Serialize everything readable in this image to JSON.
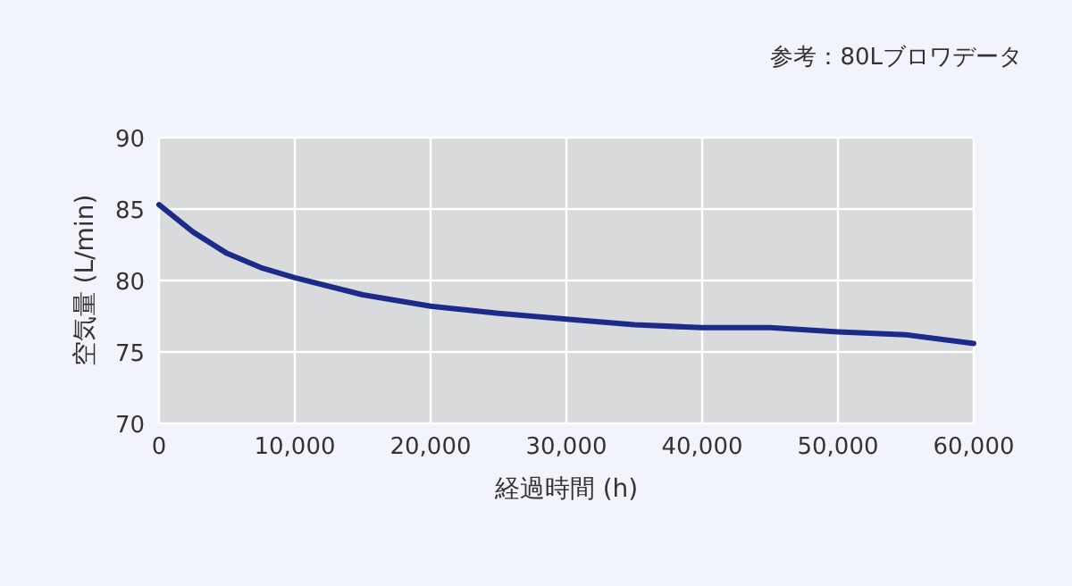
{
  "chart_data": {
    "type": "line",
    "xlabel": "経過時間 (h)",
    "ylabel": "空気量 (L/min)",
    "annotations": [
      "参考：80Lブロワデータ"
    ],
    "x": [
      0,
      2500,
      5000,
      7500,
      10000,
      15000,
      20000,
      25000,
      30000,
      35000,
      40000,
      45000,
      50000,
      55000,
      60000
    ],
    "series": [
      {
        "color": "#1c2a8a",
        "values": [
          85.3,
          83.4,
          81.9,
          80.9,
          80.2,
          79.0,
          78.2,
          77.7,
          77.3,
          76.9,
          76.7,
          76.7,
          76.4,
          76.2,
          75.6
        ]
      }
    ],
    "xlim": [
      0,
      60000
    ],
    "xticks": [
      {
        "value": 0,
        "label": "0"
      },
      {
        "value": 10000,
        "label": "10,000"
      },
      {
        "value": 20000,
        "label": "20,000"
      },
      {
        "value": 30000,
        "label": "30,000"
      },
      {
        "value": 40000,
        "label": "40,000"
      },
      {
        "value": 50000,
        "label": "50,000"
      },
      {
        "value": 60000,
        "label": "60,000"
      }
    ],
    "ylim": [
      70,
      90
    ],
    "yticks": [
      70,
      75,
      80,
      85,
      90
    ],
    "grid": true,
    "marker": "none",
    "line_style": "solid"
  }
}
